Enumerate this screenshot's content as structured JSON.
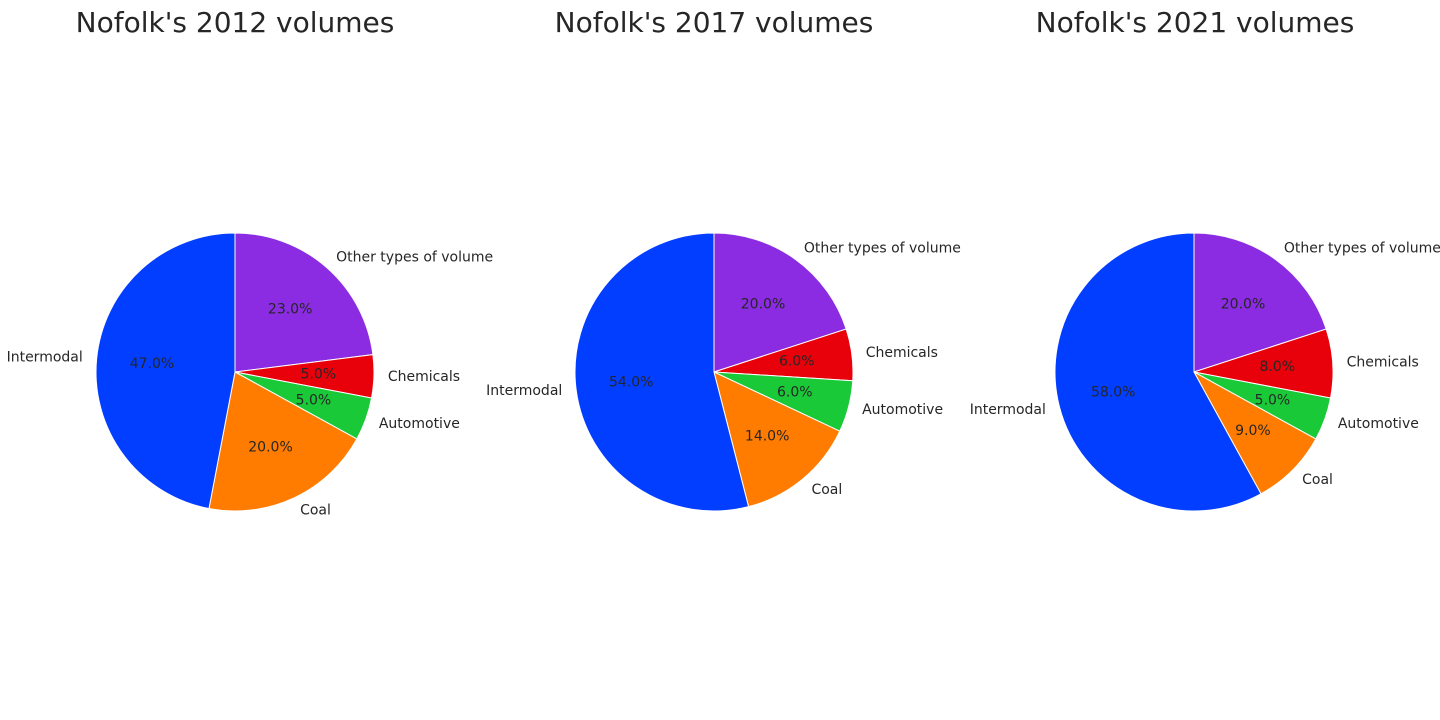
{
  "chart_data": [
    {
      "type": "pie",
      "title": "Nofolk's 2012 volumes",
      "slices": [
        {
          "label": "Other types of volume",
          "value": 23.0,
          "pct_text": "23.0%",
          "color": "#8b2be2"
        },
        {
          "label": "Chemicals",
          "value": 5.0,
          "pct_text": "5.0%",
          "color": "#e8000b"
        },
        {
          "label": "Automotive",
          "value": 5.0,
          "pct_text": "5.0%",
          "color": "#1ac938"
        },
        {
          "label": "Coal",
          "value": 20.0,
          "pct_text": "20.0%",
          "color": "#ff7c00"
        },
        {
          "label": "Intermodal",
          "value": 47.0,
          "pct_text": "47.0%",
          "color": "#023eff"
        }
      ]
    },
    {
      "type": "pie",
      "title": "Nofolk's 2017 volumes",
      "slices": [
        {
          "label": "Other types of volume",
          "value": 20.0,
          "pct_text": "20.0%",
          "color": "#8b2be2"
        },
        {
          "label": "Chemicals",
          "value": 6.0,
          "pct_text": "6.0%",
          "color": "#e8000b"
        },
        {
          "label": "Automotive",
          "value": 6.0,
          "pct_text": "6.0%",
          "color": "#1ac938"
        },
        {
          "label": "Coal",
          "value": 14.0,
          "pct_text": "14.0%",
          "color": "#ff7c00"
        },
        {
          "label": "Intermodal",
          "value": 54.0,
          "pct_text": "54.0%",
          "color": "#023eff"
        }
      ]
    },
    {
      "type": "pie",
      "title": "Nofolk's 2021 volumes",
      "slices": [
        {
          "label": "Other types of volume",
          "value": 20.0,
          "pct_text": "20.0%",
          "color": "#8b2be2"
        },
        {
          "label": "Chemicals",
          "value": 8.0,
          "pct_text": "8.0%",
          "color": "#e8000b"
        },
        {
          "label": "Automotive",
          "value": 5.0,
          "pct_text": "5.0%",
          "color": "#1ac938"
        },
        {
          "label": "Coal",
          "value": 9.0,
          "pct_text": "9.0%",
          "color": "#ff7c00"
        },
        {
          "label": "Intermodal",
          "value": 58.0,
          "pct_text": "58.0%",
          "color": "#023eff"
        }
      ]
    }
  ]
}
